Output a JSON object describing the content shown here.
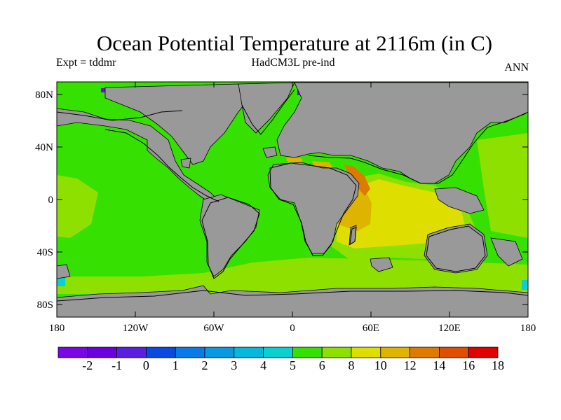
{
  "title": "Ocean Potential Temperature at 2116m (in C)",
  "subtitle_left": "Expt = tddmr",
  "subtitle_center": "HadCM3L pre-ind",
  "subtitle_right": "ANN",
  "colors": {
    "land": "#999999",
    "coast": "#000000",
    "scale": [
      "#7a06e6",
      "#6a00e0",
      "#5a1ee0",
      "#0a4ae0",
      "#0a7ae6",
      "#0a98e0",
      "#06b8dc",
      "#0ad0d0",
      "#36e000",
      "#8ee000",
      "#dede00",
      "#deb400",
      "#de7a00",
      "#de5000",
      "#e00000"
    ]
  },
  "map": {
    "y_ticks": [
      "80N",
      "40N",
      "0",
      "40S",
      "80S"
    ],
    "x_ticks": [
      "180",
      "120W",
      "60W",
      "0",
      "60E",
      "120E",
      "180"
    ]
  },
  "colorbar": {
    "labels": [
      "-2",
      "-1",
      "0",
      "1",
      "2",
      "3",
      "4",
      "5",
      "6",
      "8",
      "10",
      "12",
      "14",
      "16",
      "18"
    ]
  }
}
